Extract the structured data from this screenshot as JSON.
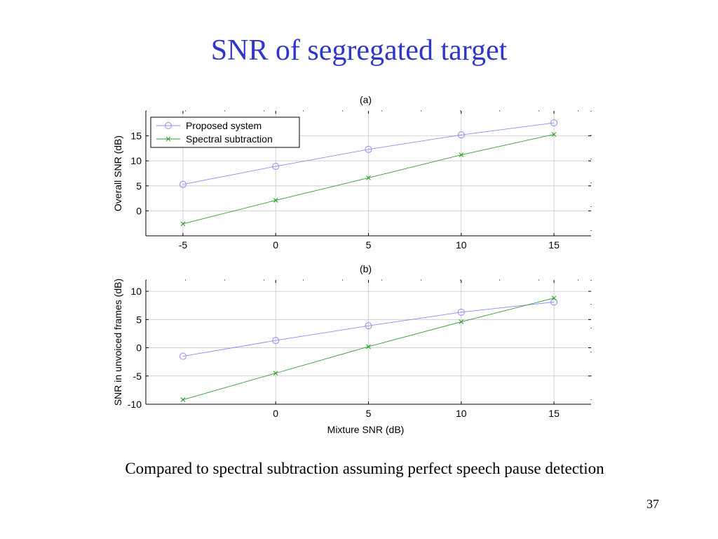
{
  "slide": {
    "title": "SNR of segregated target",
    "caption": "Compared to spectral subtraction assuming perfect speech pause detection",
    "page_number": "37"
  },
  "colors": {
    "title": "#2e37c8",
    "proposed": "#8a8aff",
    "spectral": "#2ca02c",
    "grid": "#c8c8c8"
  },
  "chart_data": [
    {
      "type": "line",
      "title": "(a)",
      "xlabel": "",
      "ylabel": "Overall SNR (dB)",
      "x": [
        -5,
        0,
        5,
        10,
        15
      ],
      "xlim": [
        -7,
        17
      ],
      "ylim": [
        -5,
        20
      ],
      "xticks": [
        -5,
        0,
        5,
        10,
        15
      ],
      "yticks": [
        0,
        5,
        10,
        15
      ],
      "grid": true,
      "legend": "top-left",
      "series": [
        {
          "name": "Proposed system",
          "marker": "circle",
          "values": [
            5.3,
            8.9,
            12.3,
            15.2,
            17.6
          ]
        },
        {
          "name": "Spectral subtraction",
          "marker": "x",
          "values": [
            -2.6,
            2.1,
            6.6,
            11.2,
            15.3
          ]
        }
      ]
    },
    {
      "type": "line",
      "title": "(b)",
      "xlabel": "Mixture SNR (dB)",
      "ylabel": "SNR in unvoiced frames (dB)",
      "x": [
        -5,
        0,
        5,
        10,
        15
      ],
      "xlim": [
        -7,
        17
      ],
      "ylim": [
        -10,
        12
      ],
      "xticks": [
        0,
        5,
        10,
        15
      ],
      "yticks": [
        -10,
        -5,
        0,
        5,
        10
      ],
      "grid": true,
      "series": [
        {
          "name": "Proposed system",
          "marker": "circle",
          "values": [
            -1.5,
            1.3,
            3.9,
            6.3,
            8.1
          ]
        },
        {
          "name": "Spectral subtraction",
          "marker": "x",
          "values": [
            -9.2,
            -4.5,
            0.2,
            4.6,
            8.8
          ]
        }
      ]
    }
  ]
}
